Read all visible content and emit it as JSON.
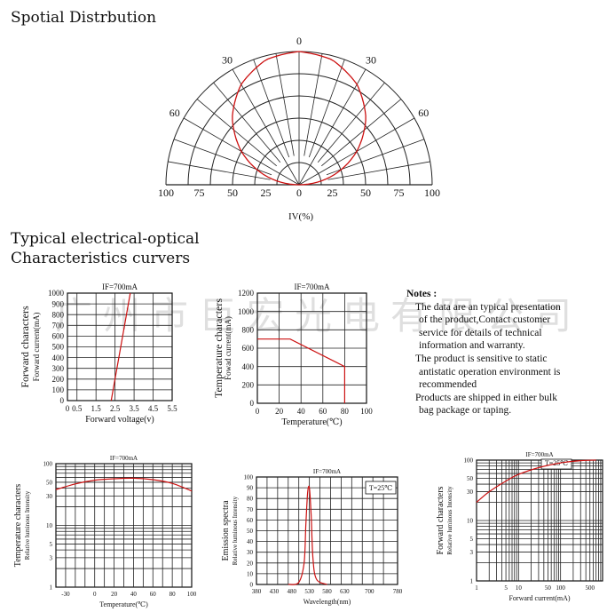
{
  "colors": {
    "curve": "#cc1111",
    "ink": "#111111",
    "grid": "#222222",
    "watermark": "#c8c8c8"
  },
  "headings": {
    "spatial": "Spotial Distrbution",
    "typical_line1": "Typical electrical-optical",
    "typical_line2": "Characteristics curvers"
  },
  "watermark": "广州市巨宏光电有限公司",
  "notes": {
    "title": "Notes :",
    "lines": [
      "The data are an typical presentation",
      "of the product,Contact customer",
      "service for details of technical",
      "information and warranty.",
      "The product is sensitive to static",
      "antistatic operation environment is",
      "recommended",
      "Products are shipped in either bulk",
      "bag package or taping."
    ]
  },
  "chart_data": [
    {
      "id": "polar",
      "type": "polar",
      "title": "Spotial Distrbution",
      "xlabel": "IV(%)",
      "angle_labels": [
        "0",
        "30",
        "30",
        "60",
        "60"
      ],
      "radial_ticks": [
        "100",
        "75",
        "50",
        "25",
        "0",
        "25",
        "50",
        "75",
        "100"
      ],
      "curve": {
        "angles_deg": [
          -90,
          -75,
          -60,
          -45,
          -30,
          -15,
          0,
          15,
          30,
          45,
          60,
          75,
          90
        ],
        "relative_intensity": [
          0,
          26,
          50,
          71,
          87,
          97,
          100,
          97,
          87,
          71,
          50,
          26,
          0
        ]
      }
    },
    {
      "id": "ivcurve",
      "type": "line",
      "title": "IF=700mA",
      "ylabel": "Forward characters",
      "ylabel2": "Forward current(mA)",
      "xlabel": "Forward voltage(v)",
      "xlim": [
        0,
        5.5
      ],
      "ylim": [
        0,
        1000
      ],
      "xticks": [
        "0",
        "0.5",
        "1.5",
        "2.5",
        "3.5",
        "4.5",
        "5.5"
      ],
      "yticks": [
        "0",
        "100",
        "200",
        "300",
        "400",
        "500",
        "600",
        "700",
        "800",
        "900",
        "1000"
      ],
      "x": [
        2.3,
        3.3
      ],
      "y": [
        0,
        1000
      ]
    },
    {
      "id": "derating",
      "type": "line",
      "title": "IF=700mA",
      "ylabel": "Temperature characters",
      "ylabel2": "Fowad current(mA)",
      "xlabel": "Temperature(℃)",
      "xlim": [
        0,
        100
      ],
      "ylim": [
        0,
        1200
      ],
      "xticks": [
        "0",
        "20",
        "40",
        "60",
        "80",
        "100"
      ],
      "yticks": [
        "0",
        "200",
        "400",
        "600",
        "800",
        "1000",
        "1200"
      ],
      "x": [
        0,
        30,
        80,
        80
      ],
      "y": [
        700,
        700,
        400,
        0
      ]
    },
    {
      "id": "tempint",
      "type": "line",
      "title": "IF=700mA",
      "ylabel": "Temperature characters",
      "ylabel2": "Relative luminous Intensity",
      "xlabel": "Temperature(℃)",
      "xlim": [
        -40,
        100
      ],
      "ylim": [
        1,
        100
      ],
      "yscale": "log",
      "xticks": [
        "-30",
        "0",
        "20",
        "40",
        "60",
        "80",
        "100"
      ],
      "xtick_values": [
        -30,
        0,
        20,
        40,
        60,
        80,
        100
      ],
      "yticks": [
        "1",
        "3",
        "5",
        "10",
        "30",
        "50",
        "100"
      ],
      "ytick_values": [
        1,
        3,
        5,
        10,
        30,
        50,
        100
      ],
      "x": [
        -40,
        -20,
        0,
        20,
        40,
        60,
        80,
        100
      ],
      "y": [
        38,
        47,
        54,
        57,
        58,
        55,
        48,
        36
      ]
    },
    {
      "id": "spectrum",
      "type": "line",
      "title": "IF=700mA",
      "legend": "T=25℃",
      "ylabel": "Emission spectra",
      "ylabel2": "Relative luminous Intensity",
      "xlabel": "Wavelength(nm)",
      "xlim": [
        380,
        780
      ],
      "ylim": [
        0,
        100
      ],
      "xticks": [
        "380",
        "430",
        "480",
        "530",
        "580",
        "630",
        "700",
        "780"
      ],
      "yticks": [
        "0",
        "10",
        "20",
        "30",
        "40",
        "50",
        "60",
        "70",
        "80",
        "90",
        "100"
      ],
      "x": [
        470,
        500,
        515,
        520,
        525,
        530,
        535,
        540,
        550,
        580
      ],
      "y": [
        0,
        2,
        20,
        55,
        85,
        90,
        65,
        25,
        5,
        0
      ]
    },
    {
      "id": "ifint",
      "type": "line",
      "title": "IF=700mA",
      "legend": "T=25℃",
      "ylabel": "Forward characters",
      "ylabel2": "Relative luminous Intensity",
      "xlabel": "Forward current(mA)",
      "xlim": [
        1,
        1000
      ],
      "ylim": [
        1,
        100
      ],
      "xscale": "log",
      "yscale": "log",
      "xticks": [
        "1",
        "5",
        "10",
        "50",
        "100",
        "500"
      ],
      "xtick_values": [
        1,
        5,
        10,
        50,
        100,
        500
      ],
      "yticks": [
        "1",
        "3",
        "5",
        "10",
        "30",
        "50",
        "100"
      ],
      "ytick_values": [
        1,
        3,
        5,
        10,
        30,
        50,
        100
      ],
      "x": [
        1,
        2,
        5,
        10,
        30,
        100,
        300,
        700
      ],
      "y": [
        20,
        30,
        45,
        58,
        75,
        90,
        98,
        100
      ]
    }
  ]
}
